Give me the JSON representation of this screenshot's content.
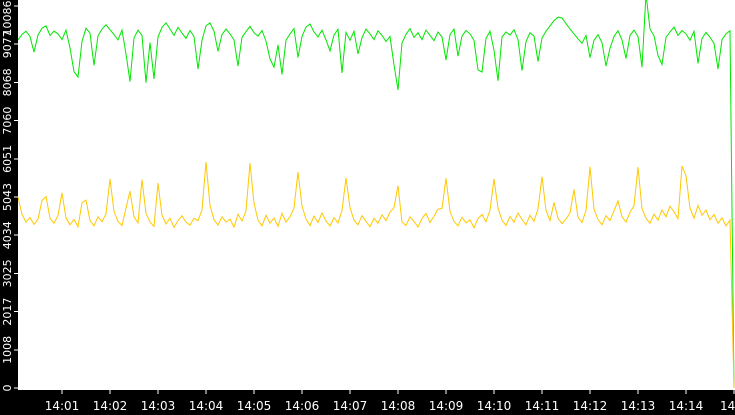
{
  "chart_data": {
    "type": "line",
    "title": "",
    "grid": "off",
    "legend": "none",
    "plot_background": "#ffffff",
    "axis_background": "#000000",
    "axis_text_color": "#ffffff",
    "x_axis": {
      "tick_labels": [
        "14:01",
        "14:02",
        "14:03",
        "14:04",
        "14:05",
        "14:06",
        "14:07",
        "14:08",
        "14:09",
        "14:10",
        "14:11",
        "14:12",
        "14:13",
        "14:14"
      ],
      "partial_last_label": "14",
      "tick_interval": "1 minute"
    },
    "y_axis": {
      "tick_labels": [
        "0",
        "1008",
        "2017",
        "3025",
        "4034",
        "5043",
        "6051",
        "7060",
        "8068",
        "9077",
        "10086"
      ],
      "tick_values": [
        0,
        1008,
        2017,
        3025,
        4034,
        5043,
        6051,
        7060,
        8068,
        9077,
        10086
      ],
      "min": 0,
      "max": 10086
    },
    "series": [
      {
        "name": "upper-green-series",
        "color": "#00e600",
        "values": [
          9190,
          9340,
          9420,
          9280,
          8870,
          9320,
          9500,
          9560,
          9310,
          9420,
          9350,
          9200,
          9450,
          8980,
          8350,
          8210,
          9150,
          9500,
          9370,
          8520,
          9300,
          9480,
          9590,
          9460,
          9330,
          9190,
          9450,
          8820,
          8090,
          9240,
          9450,
          9310,
          8060,
          9120,
          8160,
          9270,
          9520,
          9640,
          9480,
          9310,
          9520,
          9370,
          9230,
          9440,
          9280,
          8420,
          9180,
          9560,
          9640,
          9420,
          8890,
          9330,
          9480,
          9350,
          9190,
          8500,
          9260,
          9410,
          9550,
          9380,
          9290,
          9440,
          9160,
          8690,
          8470,
          9060,
          8280,
          9180,
          9350,
          9490,
          8730,
          9280,
          9530,
          9610,
          9400,
          9270,
          9450,
          9190,
          8900,
          9320,
          9470,
          8320,
          9390,
          9180,
          9420,
          8820,
          9250,
          9480,
          9350,
          9200,
          9430,
          9310,
          9150,
          9280,
          8530,
          7870,
          9110,
          9340,
          9490,
          9260,
          9380,
          9200,
          9450,
          9310,
          9170,
          9400,
          9270,
          8660,
          9330,
          9480,
          8760,
          9290,
          9440,
          9350,
          9180,
          8400,
          8340,
          9230,
          9420,
          8920,
          8110,
          9270,
          9400,
          9320,
          9460,
          9200,
          8380,
          9150,
          9380,
          9290,
          8620,
          9240,
          9420,
          9560,
          9700,
          9790,
          9770,
          9620,
          9480,
          9350,
          9220,
          9100,
          9310,
          8720,
          9180,
          9330,
          9120,
          8500,
          8970,
          9280,
          9430,
          9190,
          8700,
          9310,
          9450,
          9280,
          8470,
          10400,
          9480,
          9300,
          8780,
          8540,
          9260,
          9400,
          9530,
          9310,
          9440,
          9350,
          9180,
          9420,
          8570,
          9230,
          9390,
          9260,
          9100,
          8420,
          9200,
          9350,
          9430,
          0
        ]
      },
      {
        "name": "lower-yellow-series",
        "color": "#ffc800",
        "values": [
          5040,
          4580,
          4380,
          4500,
          4320,
          4460,
          4950,
          5060,
          4480,
          4350,
          4560,
          5150,
          4490,
          4310,
          4450,
          4260,
          4890,
          4960,
          4420,
          4280,
          4520,
          4390,
          4600,
          5520,
          4660,
          4400,
          4290,
          4750,
          5200,
          4520,
          4360,
          5500,
          4610,
          4380,
          4270,
          5410,
          4560,
          4330,
          4480,
          4240,
          4420,
          4550,
          4380,
          4300,
          4480,
          4420,
          4700,
          5970,
          4820,
          4440,
          4300,
          4520,
          4380,
          4460,
          4250,
          4590,
          4410,
          4680,
          5940,
          4880,
          4430,
          4280,
          4560,
          4350,
          4490,
          4270,
          4610,
          4380,
          4520,
          4750,
          5700,
          4800,
          4460,
          4290,
          4540,
          4370,
          4620,
          4410,
          4280,
          4500,
          4360,
          4680,
          5550,
          4760,
          4430,
          4310,
          4550,
          4400,
          4260,
          4480,
          4350,
          4570,
          4420,
          4640,
          4760,
          5340,
          4380,
          4290,
          4520,
          4400,
          4250,
          4480,
          4610,
          4370,
          4540,
          4720,
          4740,
          5540,
          4660,
          4400,
          4280,
          4510,
          4360,
          4440,
          4230,
          4470,
          4580,
          4390,
          4700,
          5520,
          4750,
          4430,
          4290,
          4530,
          4380,
          4620,
          4450,
          4310,
          4560,
          4400,
          4730,
          5580,
          4690,
          4420,
          4900,
          4480,
          4340,
          4460,
          4620,
          5240,
          4510,
          4370,
          4690,
          5840,
          4720,
          4450,
          4310,
          4550,
          4420,
          4680,
          4940,
          4520,
          4380,
          4640,
          4810,
          5830,
          4740,
          4480,
          4350,
          4590,
          4430,
          4700,
          4520,
          4800,
          4650,
          4470,
          5860,
          5600,
          4750,
          4480,
          4820,
          4560,
          4700,
          4440,
          4580,
          4350,
          4490,
          4280,
          4430,
          0
        ]
      }
    ]
  }
}
